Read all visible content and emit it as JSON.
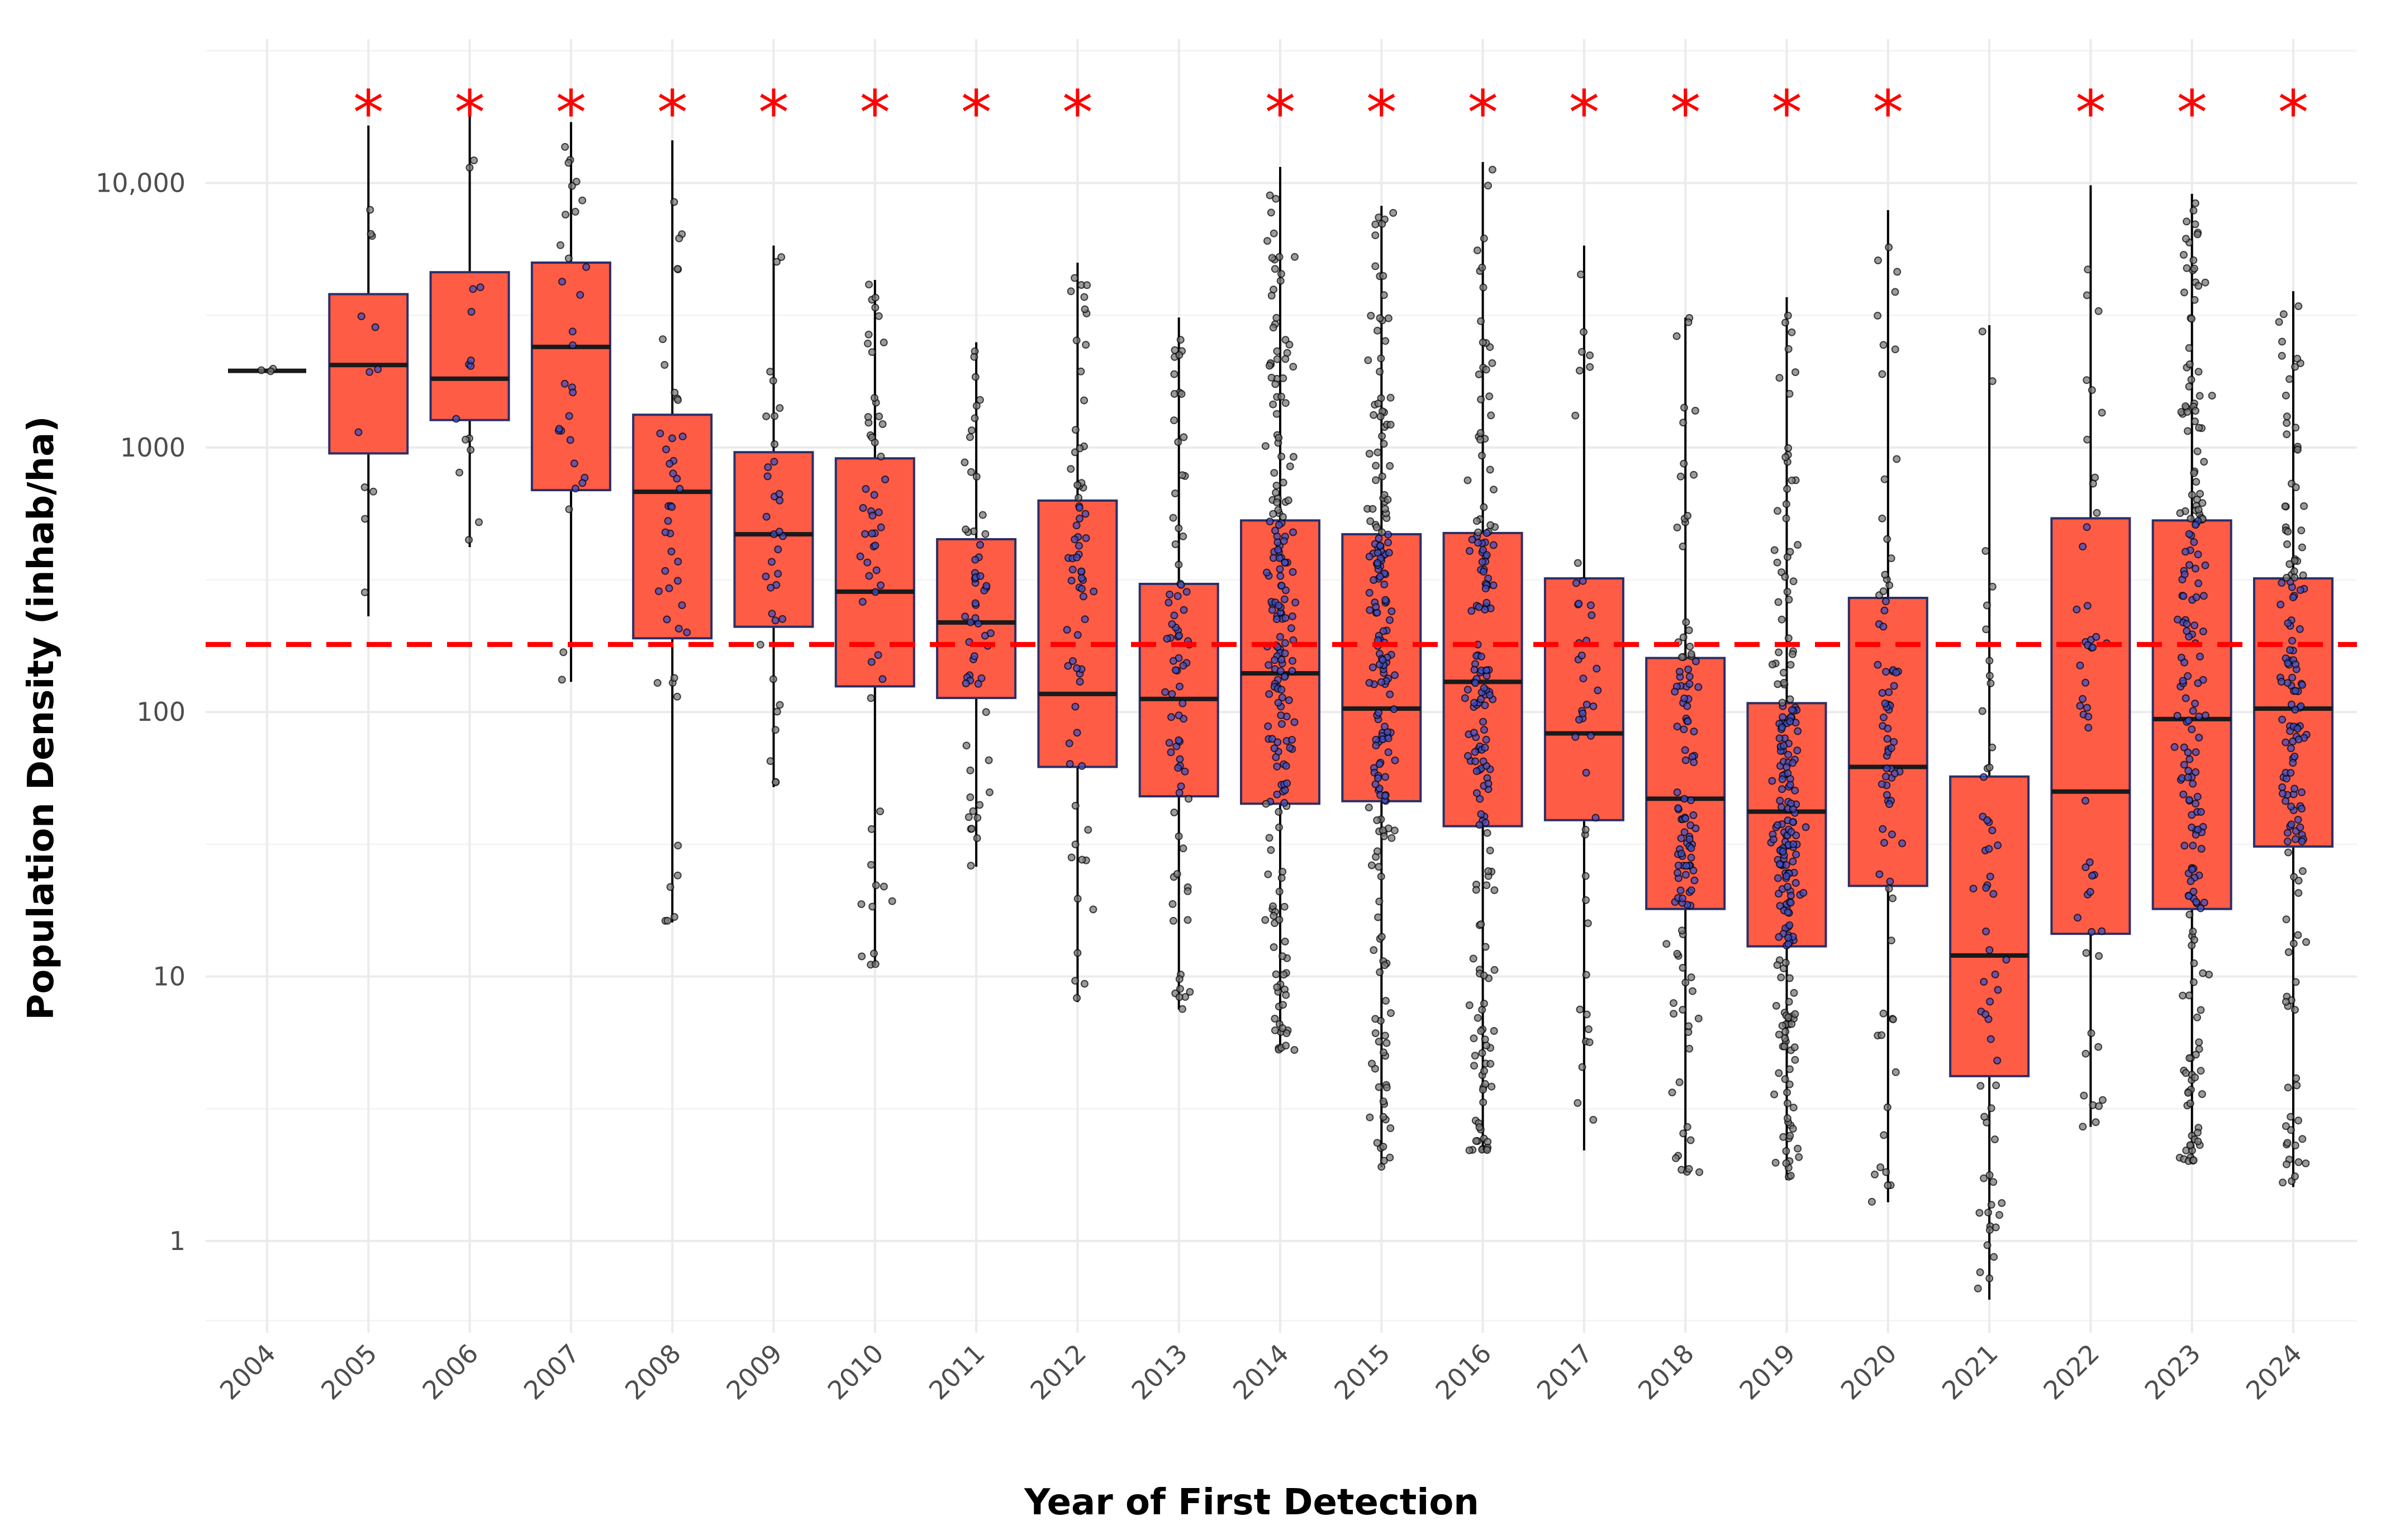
{
  "chart_data": {
    "type": "boxplot",
    "title": "",
    "xlabel": "Year of First Detection",
    "ylabel": "Population Density (inhab/ha)",
    "y_scale": "log10",
    "ylim": [
      0.45,
      35000
    ],
    "y_ticks": [
      1,
      10,
      100,
      1000,
      10000
    ],
    "y_tick_labels": [
      "1",
      "10",
      "100",
      "1000",
      "10,000"
    ],
    "reference_line": {
      "value": 180,
      "style": "dashed",
      "color": "#ff0000"
    },
    "significance_marker": "*",
    "colors": {
      "box_fill": "#ff5c45",
      "box_border": "#2b2f66",
      "median": "#1a1a1a",
      "whisker": "#000000",
      "point": "#000000",
      "point_in_box": "#3f4fc4",
      "grid": "#ebebeb",
      "marker": "#ff0000"
    },
    "categories": [
      "2004",
      "2005",
      "2006",
      "2007",
      "2008",
      "2009",
      "2010",
      "2011",
      "2012",
      "2013",
      "2014",
      "2015",
      "2016",
      "2017",
      "2018",
      "2019",
      "2020",
      "2021",
      "2022",
      "2023",
      "2024"
    ],
    "boxes": [
      {
        "year": "2004",
        "q1": 1950,
        "median": 1950,
        "q3": 1950,
        "wlo": 1950,
        "whi": 1950,
        "n": 3,
        "sig": false
      },
      {
        "year": "2005",
        "q1": 950,
        "median": 2050,
        "q3": 3800,
        "wlo": 230,
        "whi": 16500,
        "n": 12,
        "sig": true
      },
      {
        "year": "2006",
        "q1": 1270,
        "median": 1820,
        "q3": 4600,
        "wlo": 420,
        "whi": 20000,
        "n": 15,
        "sig": true
      },
      {
        "year": "2007",
        "q1": 690,
        "median": 2400,
        "q3": 5000,
        "wlo": 130,
        "whi": 17000,
        "n": 30,
        "sig": true
      },
      {
        "year": "2008",
        "q1": 190,
        "median": 680,
        "q3": 1330,
        "wlo": 16,
        "whi": 14500,
        "n": 45,
        "sig": true
      },
      {
        "year": "2009",
        "q1": 210,
        "median": 470,
        "q3": 960,
        "wlo": 52,
        "whi": 5800,
        "n": 35,
        "sig": true
      },
      {
        "year": "2010",
        "q1": 125,
        "median": 285,
        "q3": 910,
        "wlo": 11,
        "whi": 4300,
        "n": 55,
        "sig": true
      },
      {
        "year": "2011",
        "q1": 113,
        "median": 218,
        "q3": 450,
        "wlo": 26,
        "whi": 2500,
        "n": 60,
        "sig": true
      },
      {
        "year": "2012",
        "q1": 62,
        "median": 117,
        "q3": 630,
        "wlo": 8,
        "whi": 5000,
        "n": 70,
        "sig": true
      },
      {
        "year": "2013",
        "q1": 48,
        "median": 112,
        "q3": 305,
        "wlo": 7.5,
        "whi": 3100,
        "n": 80,
        "sig": false
      },
      {
        "year": "2014",
        "q1": 45,
        "median": 140,
        "q3": 530,
        "wlo": 5.2,
        "whi": 11500,
        "n": 200,
        "sig": true
      },
      {
        "year": "2015",
        "q1": 46,
        "median": 103,
        "q3": 470,
        "wlo": 1.9,
        "whi": 8200,
        "n": 200,
        "sig": true
      },
      {
        "year": "2016",
        "q1": 37,
        "median": 130,
        "q3": 475,
        "wlo": 2.2,
        "whi": 12000,
        "n": 180,
        "sig": true
      },
      {
        "year": "2017",
        "q1": 39,
        "median": 83,
        "q3": 320,
        "wlo": 2.2,
        "whi": 5800,
        "n": 45,
        "sig": true
      },
      {
        "year": "2018",
        "q1": 18,
        "median": 47,
        "q3": 160,
        "wlo": 1.8,
        "whi": 3100,
        "n": 120,
        "sig": true
      },
      {
        "year": "2019",
        "q1": 13,
        "median": 42,
        "q3": 108,
        "wlo": 1.7,
        "whi": 3700,
        "n": 220,
        "sig": true
      },
      {
        "year": "2020",
        "q1": 22,
        "median": 62,
        "q3": 270,
        "wlo": 1.4,
        "whi": 7900,
        "n": 80,
        "sig": true
      },
      {
        "year": "2021",
        "q1": 4.2,
        "median": 12,
        "q3": 57,
        "wlo": 0.6,
        "whi": 2900,
        "n": 60,
        "sig": false
      },
      {
        "year": "2022",
        "q1": 14.5,
        "median": 50,
        "q3": 540,
        "wlo": 2.7,
        "whi": 9800,
        "n": 50,
        "sig": true
      },
      {
        "year": "2023",
        "q1": 18,
        "median": 94,
        "q3": 530,
        "wlo": 2.0,
        "whi": 9100,
        "n": 200,
        "sig": true
      },
      {
        "year": "2024",
        "q1": 31,
        "median": 103,
        "q3": 320,
        "wlo": 1.6,
        "whi": 3900,
        "n": 150,
        "sig": true
      }
    ]
  }
}
